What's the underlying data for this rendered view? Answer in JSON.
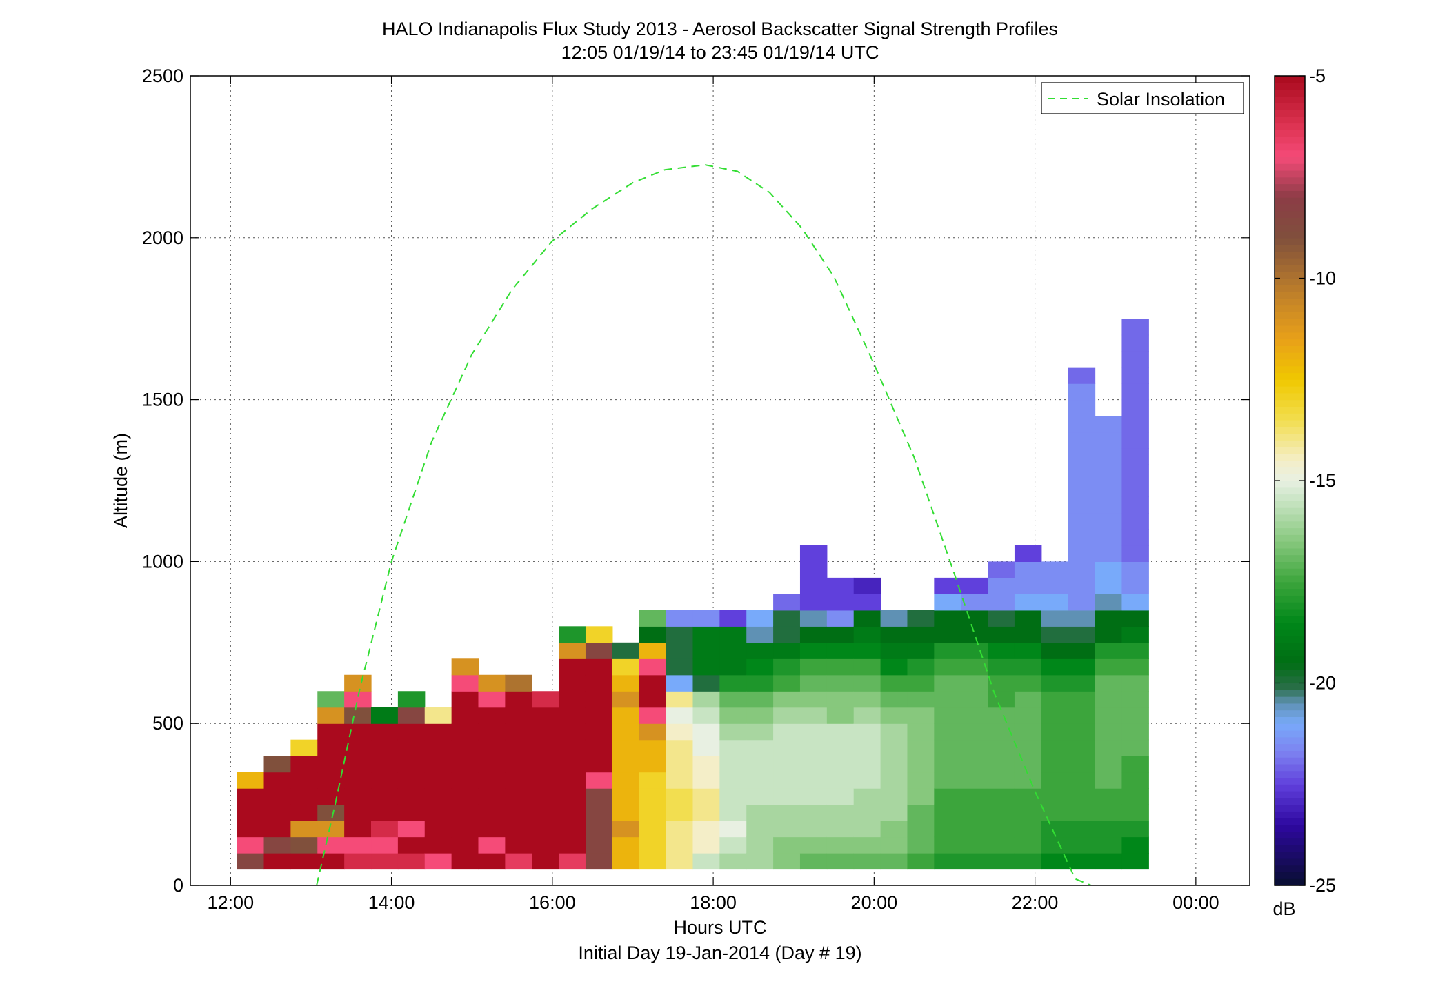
{
  "chart_data": {
    "type": "heatmap",
    "title": "HALO Indianapolis Flux Study 2013 - Aerosol Backscatter Signal Strength Profiles",
    "subtitle": "12:05 01/19/14 to 23:45 01/19/14  UTC",
    "xlabel": "Hours UTC",
    "xlabel2": "Initial Day 19-Jan-2014 (Day # 19)",
    "ylabel": "Altitude (m)",
    "xlim": [
      11.5,
      24.67
    ],
    "ylim": [
      0,
      2500
    ],
    "x_ticks": [
      12,
      14,
      16,
      18,
      20,
      22,
      24
    ],
    "x_tick_labels": [
      "12:00",
      "14:00",
      "16:00",
      "18:00",
      "20:00",
      "22:00",
      "00:00"
    ],
    "y_ticks": [
      0,
      500,
      1000,
      1500,
      2000,
      2500
    ],
    "y_tick_labels": [
      "0",
      "500",
      "1000",
      "1500",
      "2000",
      "2500"
    ],
    "grid": true,
    "legend": {
      "position": "top-right",
      "entries": [
        "Solar Insolation"
      ]
    },
    "colorbar": {
      "label": "dB",
      "range": [
        -25,
        -5
      ],
      "ticks": [
        -25,
        -20,
        -15,
        -10,
        -5
      ],
      "tick_labels": [
        "-25",
        "-20",
        "-15",
        "-10",
        "-5"
      ]
    },
    "grid_cells": {
      "x_start": 12.08,
      "x_step": 0.3333,
      "y_start": 50,
      "y_step": 50,
      "value_units": "dB",
      "columns": [
        [
          -8.5,
          -7,
          -5,
          -5,
          -5,
          -12
        ],
        [
          -5,
          -8.5,
          -5,
          -5,
          -5,
          -5,
          -9
        ],
        [
          -5,
          -9,
          -11,
          -5,
          -5,
          -5,
          -5,
          -13
        ],
        [
          -5,
          -7,
          -11,
          -9,
          -5,
          -5,
          -5,
          -5,
          -5,
          -11,
          -17
        ],
        [
          -6,
          -7,
          -5,
          -5,
          -5,
          -5,
          -5,
          -5,
          -5,
          -9,
          -7,
          -11
        ],
        [
          -6,
          -7,
          -6,
          -5,
          -5,
          -5,
          -5,
          -5,
          -5,
          -19
        ],
        [
          -6,
          -5,
          -7,
          -5,
          -5,
          -5,
          -5,
          -5,
          -5,
          -8.5,
          -18
        ],
        [
          -7,
          -5,
          -5,
          -5,
          -5,
          -5,
          -5,
          -5,
          -5,
          -14
        ],
        [
          -5,
          -5,
          -5,
          -5,
          -5,
          -5,
          -5,
          -5,
          -5,
          -5,
          -5,
          -7,
          -11
        ],
        [
          -5,
          -7,
          -5,
          -5,
          -5,
          -5,
          -5,
          -5,
          -5,
          -5,
          -7,
          -11
        ],
        [
          -6.5,
          -5,
          -5,
          -5,
          -5,
          -5,
          -5,
          -5,
          -5,
          -5,
          -5,
          -10
        ],
        [
          -5,
          -5,
          -5,
          -5,
          -5,
          -5,
          -5,
          -5,
          -5,
          -5,
          -6
        ],
        [
          -6.5,
          -5,
          -5,
          -5,
          -5,
          -5,
          -5,
          -5,
          -5,
          -5,
          -5,
          -5,
          -5,
          -11,
          -18
        ],
        [
          -8.5,
          -8.5,
          -8.5,
          -8.5,
          -8.5,
          -7,
          -5,
          -5,
          -5,
          -5,
          -5,
          -5,
          -5,
          -8.5,
          -13
        ],
        [
          -12,
          -12,
          -11,
          -12,
          -12,
          -12,
          -12,
          -12,
          -12,
          -12,
          -11,
          -12,
          -13,
          -20
        ],
        [
          -13,
          -13,
          -13,
          -13,
          -13,
          -13,
          -12,
          -12,
          -11,
          -7,
          -5,
          -5,
          -7,
          -12,
          -19.5,
          -17
        ],
        [
          -14,
          -14,
          -14,
          -13.5,
          -13.5,
          -14,
          -14,
          -14,
          -14.5,
          -15,
          -14,
          -21,
          -20,
          -20,
          -20,
          -21.5
        ],
        [
          -15.5,
          -14.5,
          -14.5,
          -14,
          -14,
          -14.5,
          -14.5,
          -15,
          -15,
          -15.5,
          -16,
          -20,
          -19,
          -19,
          -19,
          -21.5
        ],
        [
          -16,
          -15.5,
          -15,
          -15.5,
          -15.5,
          -15.5,
          -15.5,
          -15.5,
          -16,
          -16.5,
          -17,
          -18,
          -19,
          -19,
          -19,
          -22.5
        ],
        [
          -16,
          -16,
          -16,
          -16,
          -15.5,
          -15.5,
          -15.5,
          -15.5,
          -16,
          -16.5,
          -17,
          -18,
          -18.5,
          -19,
          -20.5,
          -21
        ],
        [
          -16.5,
          -16.5,
          -16,
          -16,
          -15.5,
          -15.5,
          -15.5,
          -15.5,
          -15.5,
          -16,
          -16.5,
          -17.5,
          -18,
          -19,
          -20,
          -20,
          -22
        ],
        [
          -17,
          -16.5,
          -16,
          -16,
          -15.5,
          -15.5,
          -15.5,
          -15.5,
          -15.5,
          -16,
          -16.5,
          -17,
          -17.5,
          -18.5,
          -19.5,
          -20.5,
          -22.5,
          -22.5,
          -22.5,
          -22.5
        ],
        [
          -17,
          -16.5,
          -16,
          -16,
          -15.5,
          -15.5,
          -15.5,
          -15.5,
          -15.5,
          -16.5,
          -16.5,
          -17,
          -17.5,
          -18.5,
          -19.5,
          -21.5,
          -22.5,
          -22.5
        ],
        [
          -17,
          -16.5,
          -16,
          -16,
          -16,
          -15.5,
          -15.5,
          -15.5,
          -15.5,
          -16,
          -16.5,
          -17,
          -17.5,
          -18.5,
          -19,
          -19.5,
          -22.5,
          -23
        ],
        [
          -17,
          -16.5,
          -16.5,
          -16,
          -16,
          -16,
          -16,
          -16,
          -16,
          -16.5,
          -17,
          -17.5,
          -18.5,
          -19,
          -19.5,
          -20.5
        ],
        [
          -17.5,
          -17,
          -17,
          -17,
          -16.5,
          -16.5,
          -16.5,
          -16.5,
          -16.5,
          -16.5,
          -17,
          -17.5,
          -18,
          -19,
          -19.5,
          -20
        ],
        [
          -18,
          -17.5,
          -17.5,
          -17.5,
          -17.5,
          -17,
          -17,
          -17,
          -17,
          -17,
          -17,
          -17,
          -17.5,
          -18,
          -19.5,
          -19.5,
          -21,
          -22.5
        ],
        [
          -18,
          -17.5,
          -17.5,
          -17.5,
          -17.5,
          -17,
          -17,
          -17,
          -17,
          -17,
          -17,
          -17,
          -17.5,
          -18,
          -19.5,
          -19.5,
          -21.5,
          -22.5
        ],
        [
          -18,
          -17.5,
          -17.5,
          -17.5,
          -17.5,
          -17,
          -17,
          -17,
          -17,
          -17,
          -17.5,
          -17.5,
          -18,
          -18.5,
          -19.5,
          -20,
          -21.5,
          -21.5,
          -22
        ],
        [
          -18,
          -17.5,
          -17.5,
          -17.5,
          -17.5,
          -17,
          -17,
          -17,
          -17,
          -17,
          -17,
          -17.5,
          -18,
          -18.5,
          -19.5,
          -19.5,
          -21,
          -21.5,
          -21.5,
          -22.5
        ],
        [
          -18.5,
          -18,
          -18,
          -17.5,
          -17.5,
          -17.5,
          -17.5,
          -17.5,
          -17.5,
          -17.5,
          -17.5,
          -18,
          -18.5,
          -19.5,
          -20,
          -20.5,
          -21,
          -21.5,
          -21.5
        ],
        [
          -18.5,
          -18,
          -18,
          -17.5,
          -17.5,
          -17.5,
          -17.5,
          -17.5,
          -17.5,
          -17.5,
          -17.5,
          -18,
          -18.5,
          -19.5,
          -20,
          -20.5,
          -21.5,
          -21.5,
          -21.5,
          -21.5,
          -21.5,
          -21.5,
          -21.5,
          -21.5,
          -21.5,
          -21.5,
          -21.5,
          -21.5,
          -21.5,
          -21.5,
          -22
        ],
        [
          -18.5,
          -18,
          -18,
          -17.5,
          -17.5,
          -17,
          -17,
          -17,
          -17,
          -17,
          -17,
          -17,
          -17.5,
          -18,
          -19.5,
          -19.5,
          -20.5,
          -21,
          -21,
          -21.5,
          -21.5,
          -21.5,
          -21.5,
          -21.5,
          -21.5,
          -21.5,
          -21.5,
          -21.5
        ],
        [
          -18.5,
          -18.5,
          -18,
          -17.5,
          -17.5,
          -17.5,
          -17.5,
          -17,
          -17,
          -17,
          -17,
          -17,
          -17.5,
          -18,
          -19,
          -19.5,
          -21,
          -21.5,
          -21.5,
          -22,
          -22,
          -22,
          -22,
          -22,
          -22,
          -22,
          -22,
          -22,
          -22,
          -22,
          -22,
          -22,
          -22,
          -22
        ]
      ]
    },
    "series": [
      {
        "name": "Solar Insolation",
        "style": "dashed",
        "color": "#33dd33",
        "x": [
          13.07,
          13.3,
          13.6,
          14,
          14.5,
          15,
          15.5,
          16,
          16.5,
          17,
          17.4,
          17.9,
          18.3,
          18.7,
          19.1,
          19.5,
          20,
          20.5,
          21,
          21.5,
          22,
          22.5,
          22.7
        ],
        "y": [
          0,
          250,
          600,
          1000,
          1370,
          1640,
          1840,
          1990,
          2090,
          2170,
          2210,
          2225,
          2205,
          2140,
          2030,
          1880,
          1610,
          1320,
          960,
          590,
          290,
          20,
          0
        ]
      }
    ]
  }
}
